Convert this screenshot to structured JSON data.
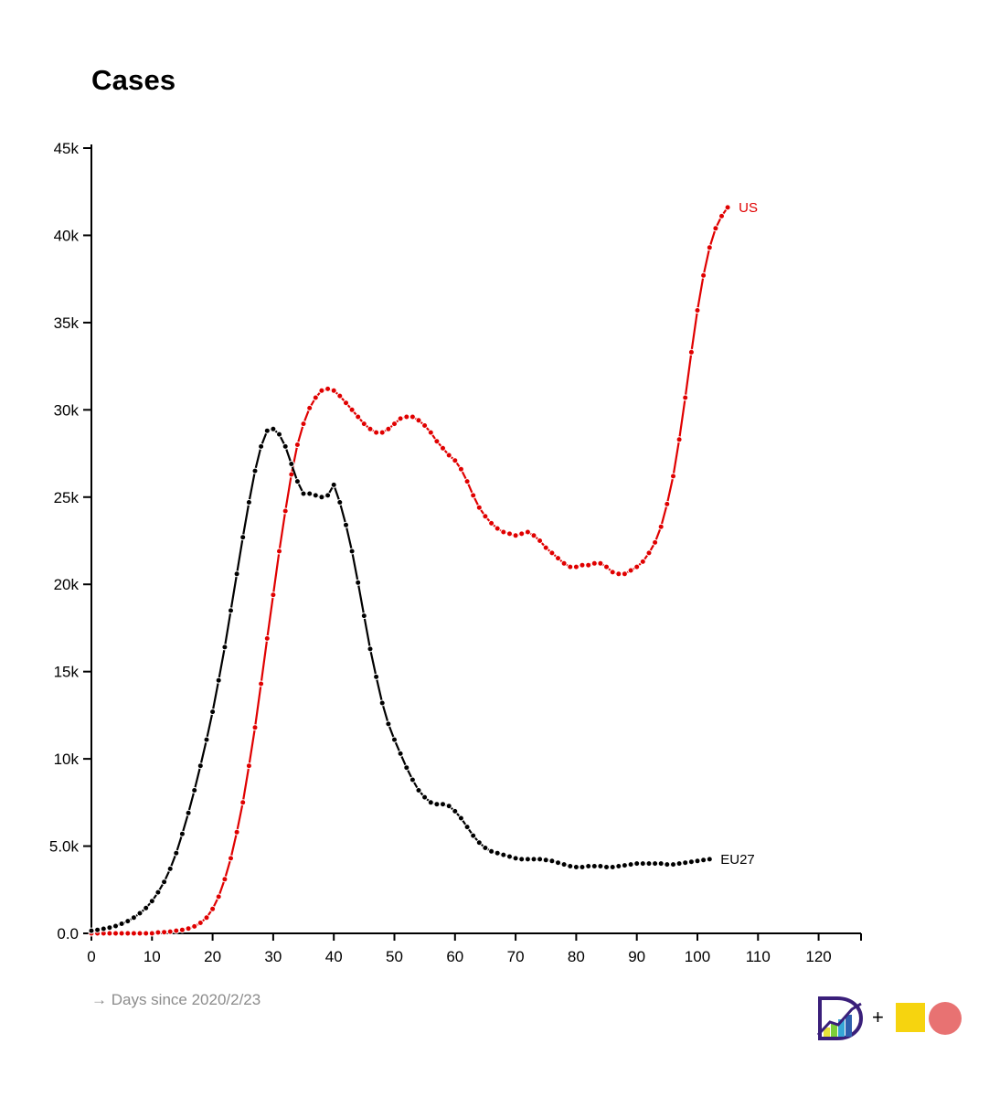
{
  "title": "Cases",
  "caption": "→ Days since 2020/2/23",
  "footer": {
    "plus": "+"
  },
  "colors": {
    "us": "#e00000",
    "eu27": "#000000",
    "logo_square": "#f6d40f",
    "logo_circle": "#e87272",
    "caption": "#8c8c8c"
  },
  "icons": {
    "logo": "datawrapper-style-logo-icon"
  },
  "chart_data": {
    "type": "line",
    "title": "Cases",
    "xlabel": "→ Days since 2020/2/23",
    "ylabel": "",
    "xlim": [
      0,
      127
    ],
    "ylim": [
      0,
      45000
    ],
    "x_ticks": [
      0,
      10,
      20,
      30,
      40,
      50,
      60,
      70,
      80,
      90,
      100,
      110,
      120
    ],
    "x_tick_labels": [
      "0",
      "10",
      "20",
      "30",
      "40",
      "50",
      "60",
      "70",
      "80",
      "90",
      "100",
      "110",
      "120"
    ],
    "y_ticks": [
      0,
      5000,
      10000,
      15000,
      20000,
      25000,
      30000,
      35000,
      40000,
      45000
    ],
    "y_tick_labels": [
      "0.0",
      "5.0k",
      "10k",
      "15k",
      "20k",
      "25k",
      "30k",
      "35k",
      "40k",
      "45k"
    ],
    "grid": false,
    "legend": "direct labels at line ends",
    "series": [
      {
        "name": "US",
        "color": "#e00000",
        "values": [
          0,
          0,
          0,
          0,
          0,
          0,
          0,
          0,
          0,
          0,
          0,
          50,
          70,
          100,
          150,
          200,
          280,
          400,
          600,
          900,
          1400,
          2100,
          3100,
          4300,
          5800,
          7500,
          9600,
          11800,
          14300,
          16900,
          19400,
          21900,
          24200,
          26300,
          28000,
          29200,
          30100,
          30700,
          31100,
          31200,
          31100,
          30800,
          30400,
          30000,
          29600,
          29200,
          28900,
          28700,
          28700,
          28900,
          29200,
          29500,
          29600,
          29600,
          29400,
          29100,
          28700,
          28200,
          27800,
          27400,
          27100,
          26600,
          25900,
          25100,
          24400,
          23900,
          23500,
          23200,
          23000,
          22900,
          22800,
          22900,
          23000,
          22800,
          22500,
          22100,
          21800,
          21500,
          21200,
          21000,
          21000,
          21100,
          21100,
          21200,
          21200,
          21000,
          20700,
          20600,
          20600,
          20800,
          21000,
          21300,
          21800,
          22400,
          23300,
          24600,
          26200,
          28300,
          30700,
          33300,
          35700,
          37700,
          39300,
          40400,
          41100,
          41600
        ]
      },
      {
        "name": "EU27",
        "color": "#000000",
        "values": [
          150,
          200,
          260,
          330,
          420,
          550,
          700,
          900,
          1150,
          1450,
          1850,
          2350,
          2950,
          3700,
          4600,
          5700,
          6900,
          8200,
          9600,
          11100,
          12700,
          14500,
          16400,
          18500,
          20600,
          22700,
          24700,
          26500,
          27900,
          28800,
          28900,
          28600,
          27900,
          26900,
          25900,
          25200,
          25200,
          25100,
          25000,
          25100,
          25700,
          24700,
          23400,
          21900,
          20100,
          18200,
          16300,
          14700,
          13200,
          12000,
          11100,
          10300,
          9500,
          8800,
          8200,
          7800,
          7500,
          7400,
          7400,
          7300,
          7000,
          6600,
          6100,
          5600,
          5200,
          4900,
          4700,
          4600,
          4500,
          4400,
          4300,
          4250,
          4250,
          4250,
          4250,
          4200,
          4150,
          4050,
          3950,
          3850,
          3800,
          3800,
          3850,
          3850,
          3850,
          3800,
          3800,
          3850,
          3900,
          3950,
          4000,
          4000,
          4000,
          4000,
          4000,
          3950,
          3950,
          4000,
          4050,
          4100,
          4150,
          4200,
          4250
        ]
      }
    ]
  }
}
